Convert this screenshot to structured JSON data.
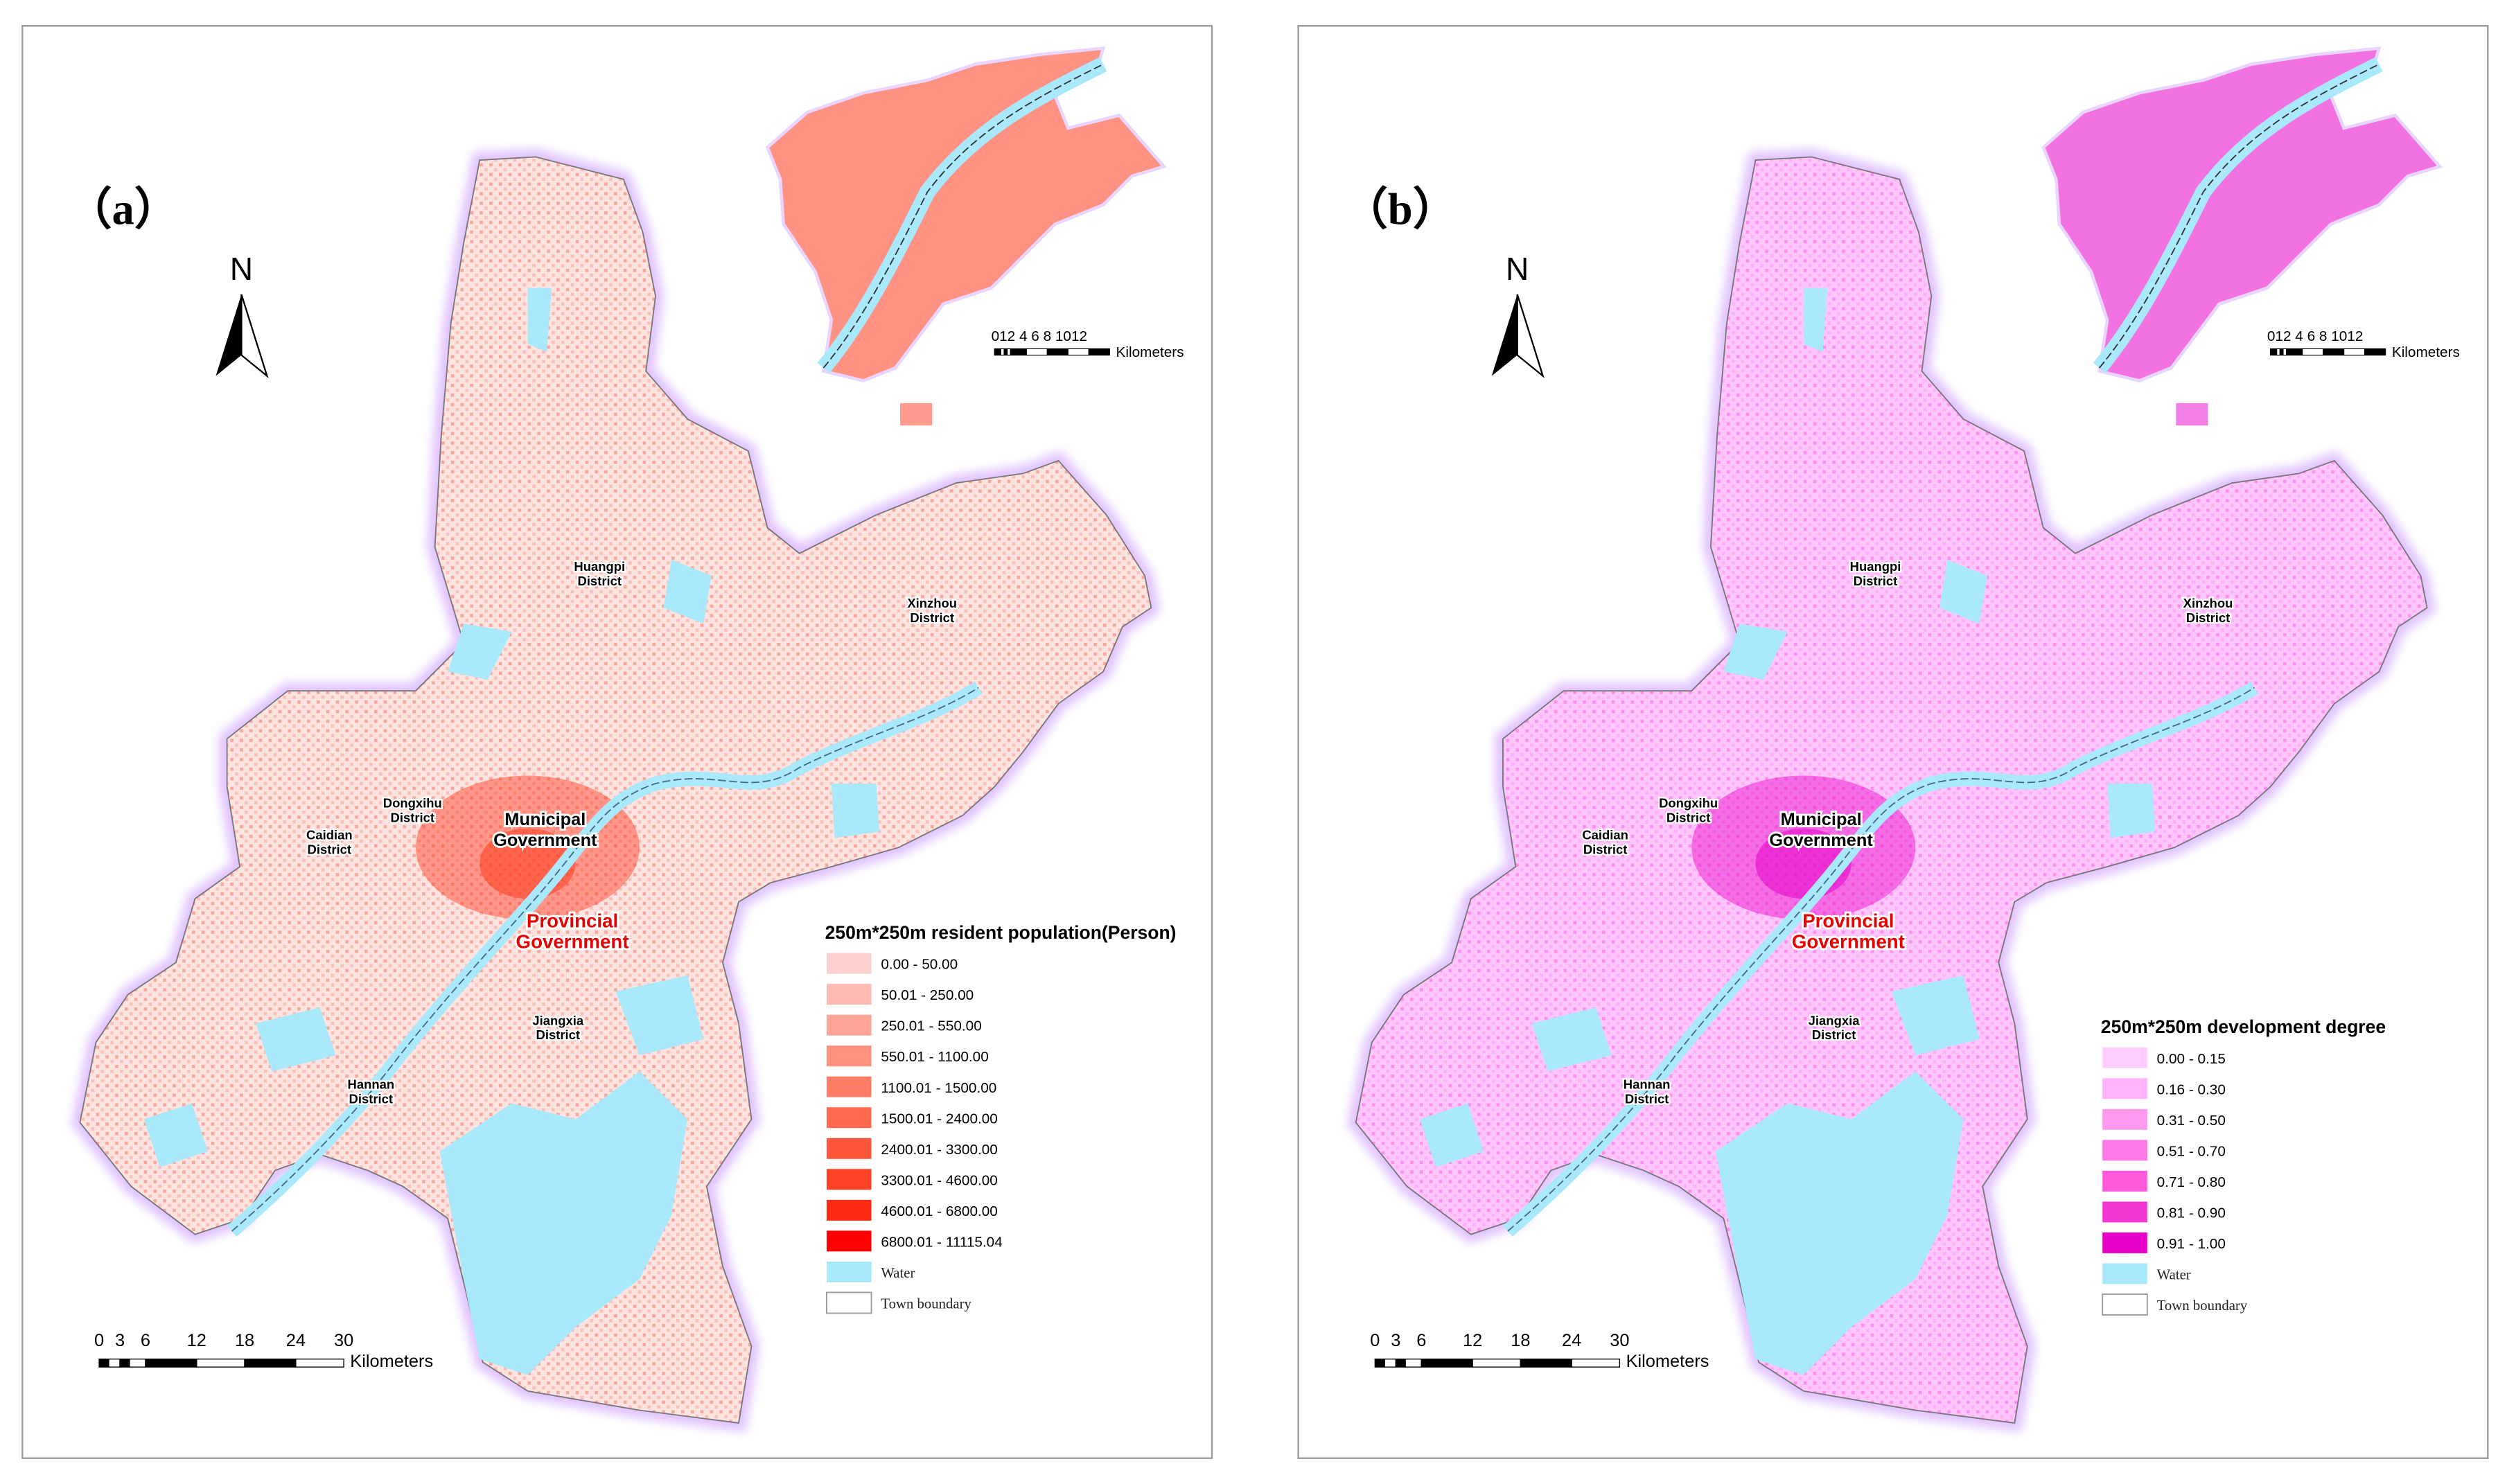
{
  "panels": [
    {
      "id": "a",
      "title": "（a）",
      "north_label": "N",
      "map_color": "#fbb7b0",
      "dense_color": "#ff3a1f",
      "districts": [
        "Huangpi\nDistrict",
        "Xinzhou\nDistrict",
        "Dongxihu\nDistrict",
        "Caidian\nDistrict",
        "Jiangxia\nDistrict",
        "Hannan\nDistrict"
      ],
      "municipal": [
        "Municipal",
        "Government"
      ],
      "provincial": [
        "Provincial",
        "Government"
      ],
      "inset_scale": {
        "ticks": "012  4  6  8 1012",
        "unit": "Kilometers"
      },
      "main_scale": {
        "ticks": [
          "0",
          "3",
          "6",
          "12",
          "18",
          "24",
          "30"
        ],
        "unit": "Kilometers"
      },
      "legend": {
        "title": "250m*250m resident population(Person)",
        "items": [
          {
            "label": "0.00 - 50.00",
            "color": "#ffd0d0"
          },
          {
            "label": "50.01 - 250.00",
            "color": "#ffbab3"
          },
          {
            "label": "250.01 - 550.00",
            "color": "#ffa597"
          },
          {
            "label": "550.01 - 1100.00",
            "color": "#ff917f"
          },
          {
            "label": "1100.01 - 1500.00",
            "color": "#ff7d66"
          },
          {
            "label": "1500.01 - 2400.00",
            "color": "#ff6a50"
          },
          {
            "label": "2400.01 - 3300.00",
            "color": "#ff553b"
          },
          {
            "label": "3300.01 - 4600.00",
            "color": "#ff4126"
          },
          {
            "label": "4600.01 - 6800.00",
            "color": "#ff2a12"
          },
          {
            "label": "6800.01 - 11115.04",
            "color": "#ff0000"
          }
        ],
        "water": {
          "label": "Water",
          "color": "#aae8fb"
        },
        "boundary": {
          "label": "Town boundary"
        }
      }
    },
    {
      "id": "b",
      "title": "（b）",
      "north_label": "N",
      "map_color": "#ffc6fb",
      "dense_color": "#e600c8",
      "districts": [
        "Huangpi\nDistrict",
        "Xinzhou\nDistrict",
        "Dongxihu\nDistrict",
        "Caidian\nDistrict",
        "Jiangxia\nDistrict",
        "Hannan\nDistrict"
      ],
      "municipal": [
        "Municipal",
        "Government"
      ],
      "provincial": [
        "Provincial",
        "Government"
      ],
      "inset_scale": {
        "ticks": "012  4  6  8 1012",
        "unit": "Kilometers"
      },
      "main_scale": {
        "ticks": [
          "0",
          "3",
          "6",
          "12",
          "18",
          "24",
          "30"
        ],
        "unit": "Kilometers"
      },
      "legend": {
        "title": "250m*250m development degree",
        "items": [
          {
            "label": "0.00 - 0.15",
            "color": "#ffccff"
          },
          {
            "label": "0.16 - 0.30",
            "color": "#ffb3fb"
          },
          {
            "label": "0.31 - 0.50",
            "color": "#ff99f0"
          },
          {
            "label": "0.51 - 0.70",
            "color": "#ff7ae6"
          },
          {
            "label": "0.71 - 0.80",
            "color": "#ff5adb"
          },
          {
            "label": "0.81 - 0.90",
            "color": "#f236d2"
          },
          {
            "label": "0.91 - 1.00",
            "color": "#e600c8"
          }
        ],
        "water": {
          "label": "Water",
          "color": "#aae8fb"
        },
        "boundary": {
          "label": "Town boundary"
        }
      }
    }
  ]
}
